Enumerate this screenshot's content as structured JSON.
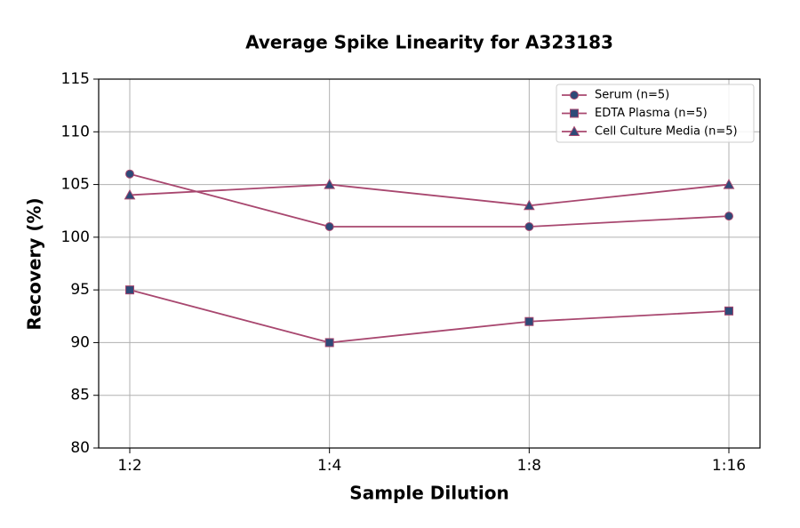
{
  "chart_data": {
    "type": "line",
    "title": "Average Spike Linearity for A323183",
    "x_label": "Sample Dilution",
    "y_label": "Recovery (%)",
    "categories": [
      "1:2",
      "1:4",
      "1:8",
      "1:16"
    ],
    "series": [
      {
        "name": "Serum (n=5)",
        "color": "#a8476f",
        "marker_color": "#2e4a78",
        "marker": "circle",
        "values": [
          106,
          101,
          101,
          102
        ]
      },
      {
        "name": "EDTA Plasma (n=5)",
        "color": "#a8476f",
        "marker_color": "#2e4a78",
        "marker": "square",
        "values": [
          95,
          90,
          92,
          93
        ]
      },
      {
        "name": "Cell Culture Media (n=5)",
        "color": "#a8476f",
        "marker_color": "#2e4a78",
        "marker": "triangle",
        "values": [
          104,
          105,
          103,
          105
        ]
      }
    ],
    "ylim": [
      80,
      115
    ],
    "yticks": [
      80,
      85,
      90,
      95,
      100,
      105,
      110,
      115
    ],
    "grid": true,
    "legend": "upper right"
  }
}
